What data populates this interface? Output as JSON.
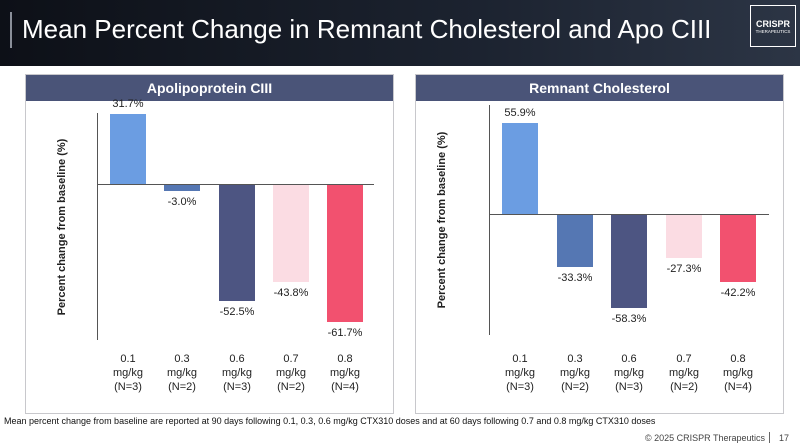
{
  "slide": {
    "title": "Mean Percent Change in Remnant Cholesterol and Apo CIII",
    "logo": [
      "CRISPR",
      "THERAPEUTICS"
    ],
    "footnote": "Mean percent change from baseline are reported at 90 days following 0.1, 0.3, 0.6 mg/kg CTX310 doses and at 60 days following 0.7 and 0.8 mg/kg CTX310 doses",
    "copyright": "© 2025 CRISPR Therapeutics",
    "page": "17"
  },
  "chart_data": [
    {
      "type": "bar",
      "title": "Apolipoprotein CIII",
      "ylabel": "Percent change from baseline (%)",
      "categories": [
        "0.1\nmg/kg\n(N=3)",
        "0.3\nmg/kg\n(N=2)",
        "0.6\nmg/kg\n(N=3)",
        "0.7\nmg/kg\n(N=2)",
        "0.8\nmg/kg\n(N=4)"
      ],
      "values": [
        31.7,
        -3.0,
        -52.5,
        -43.8,
        -61.7
      ],
      "value_labels": [
        "31.7%",
        "-3.0%",
        "-52.5%",
        "-43.8%",
        "-61.7%"
      ],
      "colors": [
        "#6b9de2",
        "#5577b3",
        "#4d5582",
        "#fbdce3",
        "#f2516f"
      ],
      "ylim": [
        -70,
        32
      ]
    },
    {
      "type": "bar",
      "title": "Remnant Cholesterol",
      "ylabel": "Percent change from baseline (%)",
      "categories": [
        "0.1\nmg/kg\n(N=3)",
        "0.3\nmg/kg\n(N=2)",
        "0.6\nmg/kg\n(N=3)",
        "0.7\nmg/kg\n(N=2)",
        "0.8\nmg/kg\n(N=4)"
      ],
      "values": [
        55.9,
        -33.3,
        -58.3,
        -27.3,
        -42.2
      ],
      "value_labels": [
        "55.9%",
        "-33.3%",
        "-58.3%",
        "-27.3%",
        "-42.2%"
      ],
      "colors": [
        "#6b9de2",
        "#5577b3",
        "#4d5582",
        "#fbdce3",
        "#f2516f"
      ],
      "ylim": [
        -75,
        67
      ]
    }
  ]
}
